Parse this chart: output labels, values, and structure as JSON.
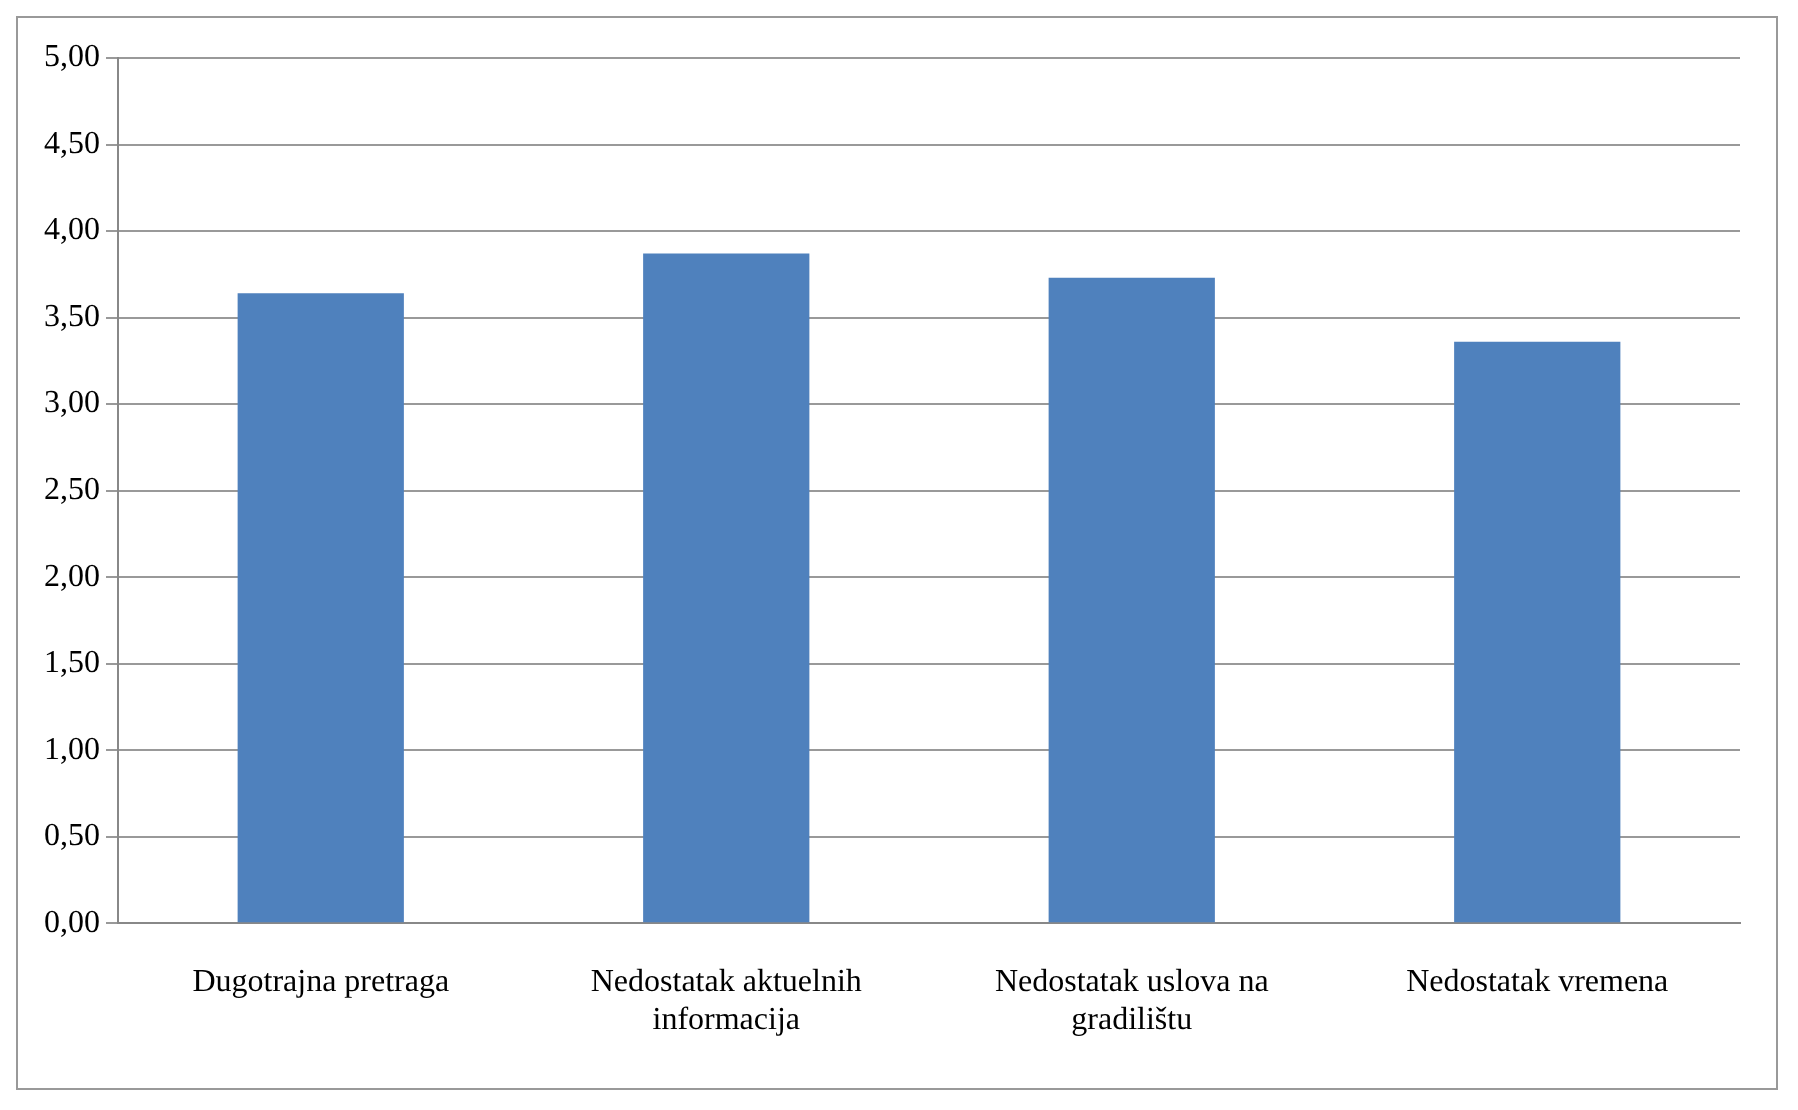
{
  "chart_data": {
    "type": "bar",
    "categories": [
      "Dugotrajna pretraga",
      "Nedostatak aktuelnih informacija",
      "Nedostatak uslova na gradilištu",
      "Nedostatak vremena"
    ],
    "values": [
      3.64,
      3.87,
      3.73,
      3.36
    ],
    "color": "#4f81bd",
    "ylim": [
      0,
      5
    ],
    "yticks": [
      {
        "value": 0,
        "label": "0,00"
      },
      {
        "value": 0.5,
        "label": "0,50"
      },
      {
        "value": 1,
        "label": "1,00"
      },
      {
        "value": 1.5,
        "label": "1,50"
      },
      {
        "value": 2,
        "label": "2,00"
      },
      {
        "value": 2.5,
        "label": "2,50"
      },
      {
        "value": 3,
        "label": "3,00"
      },
      {
        "value": 3.5,
        "label": "3,50"
      },
      {
        "value": 4,
        "label": "4,00"
      },
      {
        "value": 4.5,
        "label": "4,50"
      },
      {
        "value": 5,
        "label": "5,00"
      }
    ],
    "grid": "y",
    "legend": false
  }
}
